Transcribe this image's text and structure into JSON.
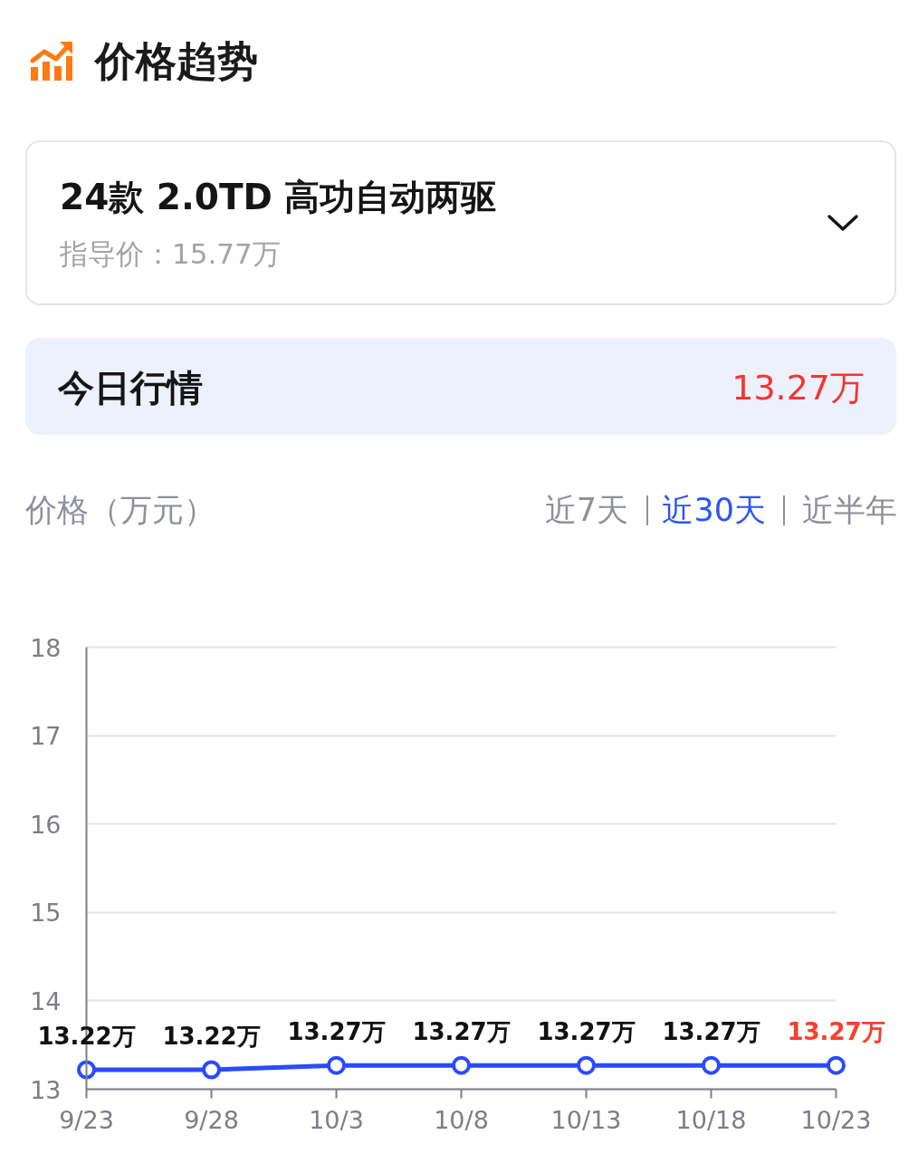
{
  "chart_data": {
    "type": "line",
    "title": "价格趋势",
    "ylabel": "价格（万元）",
    "categories": [
      "9/23",
      "9/28",
      "10/3",
      "10/8",
      "10/13",
      "10/18",
      "10/23"
    ],
    "values": [
      13.22,
      13.22,
      13.27,
      13.27,
      13.27,
      13.27,
      13.27
    ],
    "value_labels": [
      "13.22万",
      "13.22万",
      "13.27万",
      "13.27万",
      "13.27万",
      "13.27万",
      "13.27万"
    ],
    "color": "#2b4bff",
    "marker": "circle",
    "line_style": "solid",
    "grid": "y",
    "ylim": [
      13,
      18
    ],
    "yticks": [
      13,
      14,
      15,
      16,
      17,
      18
    ],
    "annotations": [
      "24款 2.0TD 高功自动两驱",
      "指导价：15.77万",
      "今日行情",
      "13.27万",
      "近7天",
      "近30天",
      "近半年"
    ]
  }
}
